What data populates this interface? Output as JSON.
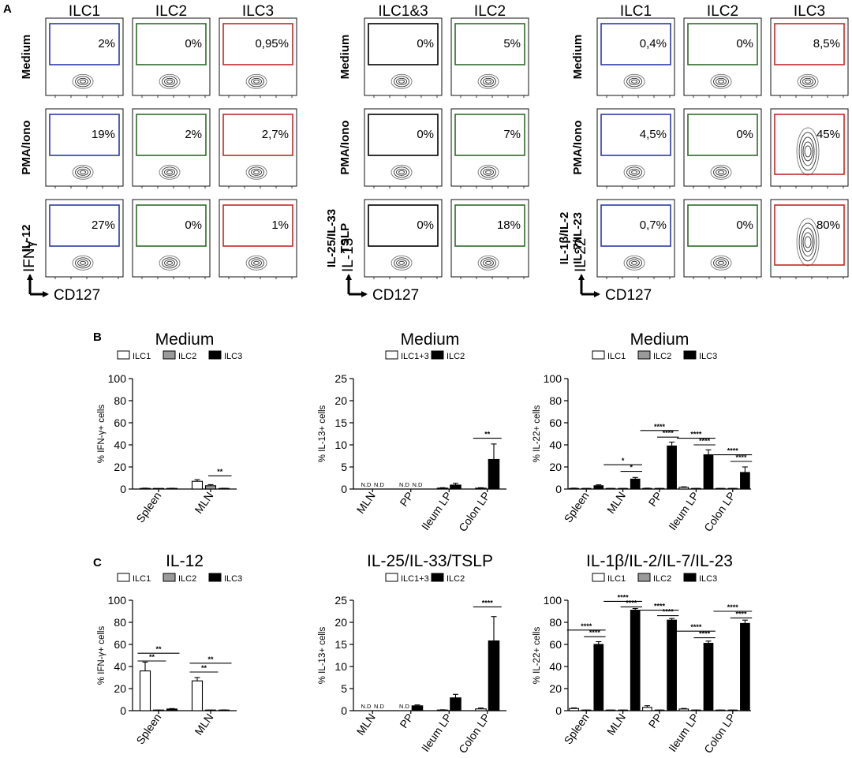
{
  "panel_labels": {
    "a": "A",
    "b": "B",
    "c": "C"
  },
  "flow": {
    "blocks": [
      {
        "columns": [
          "ILC1",
          "ILC2",
          "ILC3"
        ],
        "rows": [
          "Medium",
          "PMA/Iono",
          "IL-12"
        ],
        "y_marker": "IFNγ",
        "x_marker": "CD127",
        "gate_colors": [
          "#2b3aa8",
          "#2e6b2a",
          "#c4272a"
        ],
        "percentages": [
          [
            "2%",
            "0%",
            "0,95%"
          ],
          [
            "19%",
            "2%",
            "2,7%"
          ],
          [
            "27%",
            "0%",
            "1%"
          ]
        ]
      },
      {
        "columns": [
          "ILC1&3",
          "ILC2"
        ],
        "rows": [
          "Medium",
          "PMA/Iono",
          "IL-25/IL-33 TSLP"
        ],
        "y_marker": "IL-13",
        "x_marker": "CD127",
        "gate_colors": [
          "#000000",
          "#2e6b2a"
        ],
        "percentages": [
          [
            "0%",
            "5%"
          ],
          [
            "0%",
            "7%"
          ],
          [
            "0%",
            "18%"
          ]
        ]
      },
      {
        "columns": [
          "ILC1",
          "ILC2",
          "ILC3"
        ],
        "rows": [
          "Medium",
          "PMA/Iono",
          "IL-1β/IL-2 IL-7/IL-23"
        ],
        "y_marker": "IL-22",
        "x_marker": "CD127",
        "gate_colors": [
          "#2b3aa8",
          "#2e6b2a",
          "#c4272a"
        ],
        "percentages": [
          [
            "0,4%",
            "0%",
            "8,5%"
          ],
          [
            "4,5%",
            "0%",
            "45%"
          ],
          [
            "0,7%",
            "0%",
            "80%"
          ]
        ]
      }
    ]
  },
  "chart_data": [
    {
      "type": "bar",
      "title": "Medium",
      "ylabel": "% IFN-γ+ cells",
      "ylim": [
        0,
        100
      ],
      "yticks": [
        0,
        20,
        40,
        60,
        80,
        100
      ],
      "categories": [
        "Spleen",
        "MLN"
      ],
      "series": [
        {
          "name": "ILC1",
          "color": "#ffffff",
          "values": [
            0.5,
            7
          ],
          "errors": [
            0.3,
            1.5
          ],
          "labels": [
            null,
            null
          ]
        },
        {
          "name": "ILC2",
          "color": "#9a9a9a",
          "values": [
            0,
            3
          ],
          "errors": [
            0,
            1
          ],
          "labels": [
            null,
            null
          ]
        },
        {
          "name": "ILC3",
          "color": "#000000",
          "values": [
            0.5,
            0.5
          ],
          "errors": [
            0.2,
            0.2
          ],
          "labels": [
            null,
            null
          ]
        }
      ],
      "sig": [
        {
          "cat": 1,
          "from": 1,
          "to": 2,
          "y": 12,
          "text": "**"
        }
      ]
    },
    {
      "type": "bar",
      "title": "Medium",
      "ylabel": "% IL-13+ cells",
      "ylim": [
        0,
        25
      ],
      "yticks": [
        0,
        5,
        10,
        15,
        20,
        25
      ],
      "categories": [
        "MLN",
        "PP",
        "Ileum LP",
        "Colon LP"
      ],
      "series": [
        {
          "name": "ILC1+3",
          "color": "#ffffff",
          "values": [
            0,
            0,
            0.2,
            0.2
          ],
          "errors": [
            0,
            0,
            0.1,
            0.1
          ],
          "labels": [
            "N.D",
            "N.D",
            null,
            null
          ]
        },
        {
          "name": "ILC2",
          "color": "#000000",
          "values": [
            0,
            0,
            0.9,
            6.7
          ],
          "errors": [
            0,
            0,
            0.4,
            3.5
          ],
          "labels": [
            "N.D",
            "N.D",
            null,
            null
          ]
        }
      ],
      "sig": [
        {
          "cat": 3,
          "from": 0,
          "to": 1,
          "y": 11.5,
          "text": "**"
        }
      ]
    },
    {
      "type": "bar",
      "title": "Medium",
      "ylabel": "% IL-22+ cells",
      "ylim": [
        0,
        100
      ],
      "yticks": [
        0,
        20,
        40,
        60,
        80,
        100
      ],
      "categories": [
        "Spleen",
        "MLN",
        "PP",
        "Ileum LP",
        "Colon LP"
      ],
      "series": [
        {
          "name": "ILC1",
          "color": "#ffffff",
          "values": [
            0.5,
            0.3,
            0.5,
            1.5,
            0.3
          ],
          "errors": [
            0.3,
            0.2,
            0.3,
            0.5,
            0.2
          ],
          "labels": [
            null,
            null,
            null,
            null,
            null
          ]
        },
        {
          "name": "ILC2",
          "color": "#9a9a9a",
          "values": [
            0.3,
            0.3,
            0.3,
            0.3,
            0.3
          ],
          "errors": [
            0.2,
            0.2,
            0.2,
            0.2,
            0.2
          ],
          "labels": [
            null,
            null,
            null,
            null,
            null
          ]
        },
        {
          "name": "ILC3",
          "color": "#000000",
          "values": [
            3,
            9,
            39,
            31,
            15
          ],
          "errors": [
            0.8,
            1.5,
            3.5,
            4.5,
            5
          ],
          "labels": [
            null,
            null,
            null,
            null,
            null
          ]
        }
      ],
      "sig": [
        {
          "cat": 1,
          "from": 0,
          "to": 2,
          "y": 22,
          "text": "*"
        },
        {
          "cat": 1,
          "from": 1,
          "to": 2,
          "y": 16,
          "text": "*"
        },
        {
          "cat": 2,
          "from": 0,
          "to": 2,
          "y": 53,
          "text": "****"
        },
        {
          "cat": 2,
          "from": 1,
          "to": 2,
          "y": 47,
          "text": "****"
        },
        {
          "cat": 3,
          "from": 0,
          "to": 2,
          "y": 46,
          "text": "****"
        },
        {
          "cat": 3,
          "from": 1,
          "to": 2,
          "y": 40,
          "text": "****"
        },
        {
          "cat": 4,
          "from": 0,
          "to": 2,
          "y": 31,
          "text": "****"
        },
        {
          "cat": 4,
          "from": 1,
          "to": 2,
          "y": 25,
          "text": "****"
        }
      ]
    },
    {
      "type": "bar",
      "title": "IL-12",
      "ylabel": "% IFN-γ+ cells",
      "ylim": [
        0,
        100
      ],
      "yticks": [
        0,
        20,
        40,
        60,
        80,
        100
      ],
      "categories": [
        "Spleen",
        "MLN"
      ],
      "series": [
        {
          "name": "ILC1",
          "color": "#ffffff",
          "values": [
            36,
            27
          ],
          "errors": [
            8,
            3
          ],
          "labels": [
            null,
            null
          ]
        },
        {
          "name": "ILC2",
          "color": "#9a9a9a",
          "values": [
            0.3,
            0.3
          ],
          "errors": [
            0.2,
            0.2
          ],
          "labels": [
            null,
            null
          ]
        },
        {
          "name": "ILC3",
          "color": "#000000",
          "values": [
            1.5,
            0.5
          ],
          "errors": [
            0.4,
            0.2
          ],
          "labels": [
            null,
            null
          ]
        }
      ],
      "sig": [
        {
          "cat": 0,
          "from": 0,
          "to": 2,
          "y": 52,
          "text": "**"
        },
        {
          "cat": 0,
          "from": 0,
          "to": 1,
          "y": 45,
          "text": "**"
        },
        {
          "cat": 1,
          "from": 0,
          "to": 2,
          "y": 43,
          "text": "**"
        },
        {
          "cat": 1,
          "from": 0,
          "to": 1,
          "y": 35,
          "text": "**"
        }
      ]
    },
    {
      "type": "bar",
      "title": "IL-25/IL-33/TSLP",
      "ylabel": "% IL-13+ cells",
      "ylim": [
        0,
        25
      ],
      "yticks": [
        0,
        5,
        10,
        15,
        20,
        25
      ],
      "categories": [
        "MLN",
        "PP",
        "Ileum LP",
        "Colon LP"
      ],
      "series": [
        {
          "name": "ILC1+3",
          "color": "#ffffff",
          "values": [
            0,
            0,
            0.1,
            0.4
          ],
          "errors": [
            0,
            0,
            0.1,
            0.2
          ],
          "labels": [
            "N.D",
            "N.D",
            null,
            null
          ]
        },
        {
          "name": "ILC2",
          "color": "#000000",
          "values": [
            0,
            1.1,
            2.9,
            15.8
          ],
          "errors": [
            0,
            0.2,
            0.8,
            5.5
          ],
          "labels": [
            "N.D",
            null,
            null,
            null
          ]
        }
      ],
      "sig": [
        {
          "cat": 3,
          "from": 0,
          "to": 1,
          "y": 23.5,
          "text": "****"
        }
      ]
    },
    {
      "type": "bar",
      "title": "IL-1β/IL-2/IL-7/IL-23",
      "ylabel": "% IL-22+ cells",
      "ylim": [
        0,
        100
      ],
      "yticks": [
        0,
        20,
        40,
        60,
        80,
        100
      ],
      "categories": [
        "Spleen",
        "MLN",
        "PP",
        "Ileum LP",
        "Colon LP"
      ],
      "series": [
        {
          "name": "ILC1",
          "color": "#ffffff",
          "values": [
            2,
            0.3,
            3,
            1.5,
            0.3
          ],
          "errors": [
            0.5,
            0.2,
            1.5,
            0.5,
            0.2
          ],
          "labels": [
            null,
            null,
            null,
            null,
            null
          ]
        },
        {
          "name": "ILC2",
          "color": "#9a9a9a",
          "values": [
            0.3,
            0.3,
            0.3,
            0.3,
            0.3
          ],
          "errors": [
            0.2,
            0.2,
            0.2,
            0.2,
            0.2
          ],
          "labels": [
            null,
            null,
            null,
            null,
            null
          ]
        },
        {
          "name": "ILC3",
          "color": "#000000",
          "values": [
            60,
            91,
            82,
            61,
            79
          ],
          "errors": [
            2.5,
            1.5,
            1.5,
            2,
            3
          ],
          "labels": [
            null,
            null,
            null,
            null,
            null
          ]
        }
      ],
      "sig": [
        {
          "cat": 0,
          "from": 0,
          "to": 2,
          "y": 73,
          "text": "****"
        },
        {
          "cat": 0,
          "from": 1,
          "to": 2,
          "y": 67,
          "text": "****"
        },
        {
          "cat": 1,
          "from": 0,
          "to": 2,
          "y": 99,
          "text": "****"
        },
        {
          "cat": 1,
          "from": 1,
          "to": 2,
          "y": 94,
          "text": "****"
        },
        {
          "cat": 2,
          "from": 0,
          "to": 2,
          "y": 91,
          "text": "****"
        },
        {
          "cat": 2,
          "from": 1,
          "to": 2,
          "y": 86,
          "text": "****"
        },
        {
          "cat": 3,
          "from": 0,
          "to": 2,
          "y": 72,
          "text": "****"
        },
        {
          "cat": 3,
          "from": 1,
          "to": 2,
          "y": 66,
          "text": "****"
        },
        {
          "cat": 4,
          "from": 0,
          "to": 2,
          "y": 90,
          "text": "****"
        },
        {
          "cat": 4,
          "from": 1,
          "to": 2,
          "y": 84,
          "text": "****"
        }
      ]
    }
  ]
}
